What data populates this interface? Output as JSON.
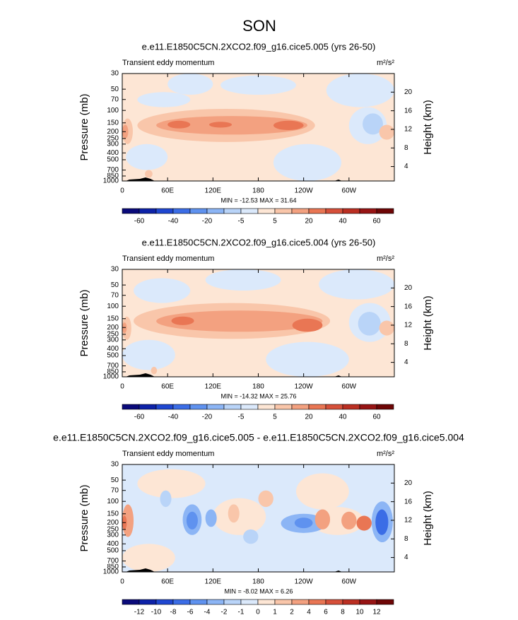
{
  "title": "SON",
  "chart_data": [
    {
      "type": "contour",
      "subtitle": "e.e11.E1850C5CN.2XCO2.f09_g16.cice5.005 (yrs 26-50)",
      "left_label": "Transient eddy momentum",
      "units": "m²/s²",
      "y_label": "Pressure (mb)",
      "y2_label": "Height (km)",
      "xlim": [
        0,
        360
      ],
      "xticks": [
        0,
        {
          "value": 60,
          "label": "60E"
        },
        {
          "value": 120,
          "label": "120E"
        },
        180,
        {
          "value": 240,
          "label": "120W"
        },
        {
          "value": 300,
          "label": "60W"
        }
      ],
      "ylim": [
        1000,
        30
      ],
      "log_y": true,
      "yticks": [
        30,
        50,
        70,
        100,
        150,
        200,
        250,
        300,
        400,
        500,
        700,
        850,
        1000
      ],
      "y2lim": [
        0.9,
        24
      ],
      "y2ticks": [
        4,
        8,
        12,
        16,
        20
      ],
      "stats": "MIN = -12.53  MAX = 31.64",
      "levels": [
        -60,
        -50,
        -40,
        -30,
        -20,
        -10,
        -5,
        0,
        5,
        10,
        20,
        30,
        40,
        50,
        60
      ],
      "label_step": 2,
      "colors": [
        "#0a0a7a",
        "#0d22a8",
        "#1f47d1",
        "#3b6de6",
        "#5f92ef",
        "#8cb5f5",
        "#b9d4f8",
        "#dbe9fb",
        "#fde6d5",
        "#f9c6aa",
        "#f3a180",
        "#e97654",
        "#d6503a",
        "#bb2f22",
        "#971414",
        "#6e0606"
      ],
      "background": 2,
      "regions": [
        {
          "lon": [
            5,
            60
          ],
          "p": [
            700,
            300
          ],
          "value": -2
        },
        {
          "lon": [
            20,
            90
          ],
          "p": [
            90,
            55
          ],
          "value": -2
        },
        {
          "lon": [
            60,
            120
          ],
          "p": [
            60,
            30
          ],
          "value": -2
        },
        {
          "lon": [
            130,
            230
          ],
          "p": [
            60,
            32
          ],
          "value": -2
        },
        {
          "lon": [
            200,
            290
          ],
          "p": [
            1000,
            300
          ],
          "value": -2
        },
        {
          "lon": [
            270,
            360
          ],
          "p": [
            90,
            30
          ],
          "value": -2
        },
        {
          "lon": [
            300,
            350
          ],
          "p": [
            300,
            90
          ],
          "value": -3
        },
        {
          "lon": [
            318,
            345
          ],
          "p": [
            220,
            110
          ],
          "value": -7
        },
        {
          "lon": [
            20,
            255
          ],
          "p": [
            280,
            95
          ],
          "value": 7
        },
        {
          "lon": [
            0,
            14
          ],
          "p": [
            300,
            130
          ],
          "value": 7
        },
        {
          "lon": [
            0,
            8
          ],
          "p": [
            250,
            160
          ],
          "value": 15
        },
        {
          "lon": [
            45,
            245
          ],
          "p": [
            220,
            120
          ],
          "value": 15
        },
        {
          "lon": [
            60,
            90
          ],
          "p": [
            180,
            140
          ],
          "value": 25
        },
        {
          "lon": [
            115,
            145
          ],
          "p": [
            175,
            145
          ],
          "value": 25
        },
        {
          "lon": [
            200,
            240
          ],
          "p": [
            190,
            140
          ],
          "value": 25
        },
        {
          "lon": [
            340,
            360
          ],
          "p": [
            260,
            160
          ],
          "value": 7
        },
        {
          "lon": [
            30,
            40
          ],
          "p": [
            900,
            700
          ],
          "value": 7
        }
      ]
    },
    {
      "type": "contour",
      "subtitle": "e.e11.E1850C5CN.2XCO2.f09_g16.cice5.004 (yrs 26-50)",
      "left_label": "Transient eddy momentum",
      "units": "m²/s²",
      "y_label": "Pressure (mb)",
      "y2_label": "Height (km)",
      "xlim": [
        0,
        360
      ],
      "xticks": [
        0,
        {
          "value": 60,
          "label": "60E"
        },
        {
          "value": 120,
          "label": "120E"
        },
        180,
        {
          "value": 240,
          "label": "120W"
        },
        {
          "value": 300,
          "label": "60W"
        }
      ],
      "ylim": [
        1000,
        30
      ],
      "log_y": true,
      "yticks": [
        30,
        50,
        70,
        100,
        150,
        200,
        250,
        300,
        400,
        500,
        700,
        850,
        1000
      ],
      "y2lim": [
        0.9,
        24
      ],
      "y2ticks": [
        4,
        8,
        12,
        16,
        20
      ],
      "stats": "MIN = -14.32  MAX = 25.76",
      "levels": [
        -60,
        -50,
        -40,
        -30,
        -20,
        -10,
        -5,
        0,
        5,
        10,
        20,
        30,
        40,
        50,
        60
      ],
      "label_step": 2,
      "colors": [
        "#0a0a7a",
        "#0d22a8",
        "#1f47d1",
        "#3b6de6",
        "#5f92ef",
        "#8cb5f5",
        "#b9d4f8",
        "#dbe9fb",
        "#fde6d5",
        "#f9c6aa",
        "#f3a180",
        "#e97654",
        "#d6503a",
        "#bb2f22",
        "#971414",
        "#6e0606"
      ],
      "background": 2,
      "regions": [
        {
          "lon": [
            0,
            70
          ],
          "p": [
            800,
            300
          ],
          "value": -2
        },
        {
          "lon": [
            15,
            90
          ],
          "p": [
            90,
            40
          ],
          "value": -2
        },
        {
          "lon": [
            110,
            210
          ],
          "p": [
            60,
            30
          ],
          "value": -2
        },
        {
          "lon": [
            190,
            300
          ],
          "p": [
            1000,
            320
          ],
          "value": -2
        },
        {
          "lon": [
            260,
            360
          ],
          "p": [
            80,
            30
          ],
          "value": -2
        },
        {
          "lon": [
            300,
            355
          ],
          "p": [
            320,
            90
          ],
          "value": -3
        },
        {
          "lon": [
            312,
            342
          ],
          "p": [
            260,
            120
          ],
          "value": -7
        },
        {
          "lon": [
            15,
            275
          ],
          "p": [
            290,
            90
          ],
          "value": 7
        },
        {
          "lon": [
            0,
            12
          ],
          "p": [
            300,
            140
          ],
          "value": 7
        },
        {
          "lon": [
            0,
            6
          ],
          "p": [
            240,
            170
          ],
          "value": 15
        },
        {
          "lon": [
            45,
            265
          ],
          "p": [
            230,
            115
          ],
          "value": 15
        },
        {
          "lon": [
            65,
            95
          ],
          "p": [
            185,
            140
          ],
          "value": 25
        },
        {
          "lon": [
            225,
            265
          ],
          "p": [
            230,
            150
          ],
          "value": 25
        },
        {
          "lon": [
            340,
            360
          ],
          "p": [
            260,
            160
          ],
          "value": 7
        },
        {
          "lon": [
            38,
            46
          ],
          "p": [
            920,
            720
          ],
          "value": 7
        }
      ]
    },
    {
      "type": "contour",
      "subtitle": "e.e11.E1850C5CN.2XCO2.f09_g16.cice5.005 - e.e11.E1850C5CN.2XCO2.f09_g16.cice5.004",
      "left_label": "Transient eddy momentum",
      "units": "m²/s²",
      "y_label": "Pressure (mb)",
      "y2_label": "Height (km)",
      "xlim": [
        0,
        360
      ],
      "xticks": [
        0,
        {
          "value": 60,
          "label": "60E"
        },
        {
          "value": 120,
          "label": "120E"
        },
        180,
        {
          "value": 240,
          "label": "120W"
        },
        {
          "value": 300,
          "label": "60W"
        }
      ],
      "ylim": [
        1000,
        30
      ],
      "log_y": true,
      "yticks": [
        30,
        50,
        70,
        100,
        150,
        200,
        250,
        300,
        400,
        500,
        700,
        850,
        1000
      ],
      "y2lim": [
        0.9,
        24
      ],
      "y2ticks": [
        4,
        8,
        12,
        16,
        20
      ],
      "stats": "MIN = -8.02  MAX =  6.26",
      "levels": [
        -12,
        -10,
        -8,
        -6,
        -4,
        -2,
        -1,
        0,
        1,
        2,
        4,
        6,
        8,
        10,
        12
      ],
      "label_step": 1,
      "colors": [
        "#0a0a7a",
        "#0d22a8",
        "#1f47d1",
        "#3b6de6",
        "#5f92ef",
        "#8cb5f5",
        "#b9d4f8",
        "#dbe9fb",
        "#fde6d5",
        "#f9c6aa",
        "#f3a180",
        "#e97654",
        "#d6503a",
        "#bb2f22",
        "#971414",
        "#6e0606"
      ],
      "background": -0.5,
      "regions": [
        {
          "lon": [
            0,
            70
          ],
          "p": [
            1000,
            400
          ],
          "value": 0.5
        },
        {
          "lon": [
            20,
            110
          ],
          "p": [
            90,
            35
          ],
          "value": 0.5
        },
        {
          "lon": [
            120,
            190
          ],
          "p": [
            300,
            90
          ],
          "value": 0.5
        },
        {
          "lon": [
            230,
            300
          ],
          "p": [
            130,
            40
          ],
          "value": 0.5
        },
        {
          "lon": [
            250,
            320
          ],
          "p": [
            300,
            120
          ],
          "value": 0.5
        },
        {
          "lon": [
            0,
            15
          ],
          "p": [
            320,
            110
          ],
          "value": 3
        },
        {
          "lon": [
            0,
            6
          ],
          "p": [
            250,
            160
          ],
          "value": 5
        },
        {
          "lon": [
            80,
            105
          ],
          "p": [
            300,
            110
          ],
          "value": -3
        },
        {
          "lon": [
            85,
            100
          ],
          "p": [
            250,
            140
          ],
          "value": -5
        },
        {
          "lon": [
            110,
            125
          ],
          "p": [
            230,
            130
          ],
          "value": -3
        },
        {
          "lon": [
            140,
            155
          ],
          "p": [
            200,
            110
          ],
          "value": 1.5
        },
        {
          "lon": [
            180,
            200
          ],
          "p": [
            120,
            70
          ],
          "value": 1.5
        },
        {
          "lon": [
            210,
            270
          ],
          "p": [
            280,
            150
          ],
          "value": -3
        },
        {
          "lon": [
            228,
            252
          ],
          "p": [
            240,
            170
          ],
          "value": -5
        },
        {
          "lon": [
            255,
            275
          ],
          "p": [
            250,
            130
          ],
          "value": 3
        },
        {
          "lon": [
            290,
            310
          ],
          "p": [
            250,
            140
          ],
          "value": 3
        },
        {
          "lon": [
            310,
            330
          ],
          "p": [
            260,
            160
          ],
          "value": 5
        },
        {
          "lon": [
            330,
            358
          ],
          "p": [
            380,
            100
          ],
          "value": -3
        },
        {
          "lon": [
            335,
            352
          ],
          "p": [
            300,
            130
          ],
          "value": -7
        },
        {
          "lon": [
            50,
            65
          ],
          "p": [
            120,
            70
          ],
          "value": -1.5
        },
        {
          "lon": [
            160,
            180
          ],
          "p": [
            400,
            250
          ],
          "value": -1.5
        }
      ]
    }
  ]
}
